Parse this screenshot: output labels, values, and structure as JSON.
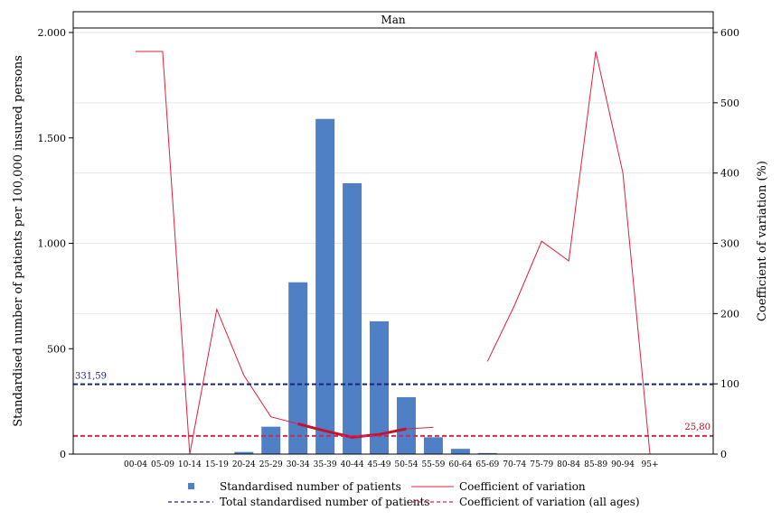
{
  "chart_data": {
    "type": "bar",
    "title": "Man",
    "ylabel": "Standardised number of patients per 100,000 insured persons",
    "y2label": "Coefficient of variation (%)",
    "categories": [
      "00-04",
      "05-09",
      "10-14",
      "15-19",
      "20-24",
      "25-29",
      "30-34",
      "35-39",
      "40-44",
      "45-49",
      "50-54",
      "55-59",
      "60-64",
      "65-69",
      "70-74",
      "75-79",
      "80-84",
      "85-89",
      "90-94",
      "95+"
    ],
    "ylim": [
      0,
      2000
    ],
    "yticks": [
      0,
      500,
      1000,
      1500,
      2000
    ],
    "ytick_labels": [
      "0",
      "500",
      "1.000",
      "1.500",
      "2.000"
    ],
    "y2lim": [
      0,
      600
    ],
    "y2ticks": [
      0,
      100,
      200,
      300,
      400,
      500,
      600
    ],
    "y2tick_labels": [
      "0",
      "100",
      "200",
      "300",
      "400",
      "500",
      "600"
    ],
    "grid": true,
    "legend_position": "bottom",
    "series": [
      {
        "name": "Standardised number of patients",
        "kind": "bar",
        "axis": "left",
        "color": "#4f7fc4",
        "values": [
          0,
          0,
          0,
          0,
          10,
          130,
          815,
          1590,
          1285,
          630,
          270,
          80,
          25,
          5,
          0,
          0,
          0,
          0,
          0,
          0
        ]
      },
      {
        "name": "Coefficient of variation",
        "kind": "line",
        "axis": "right",
        "color": "#e0203c",
        "values": [
          573,
          573,
          0,
          206,
          112,
          53,
          43,
          33,
          24,
          28,
          36,
          38,
          null,
          132,
          212,
          303,
          275,
          573,
          400,
          0
        ],
        "bold_range": [
          6,
          10
        ]
      },
      {
        "name": "Total standardised number of patients",
        "kind": "hline",
        "axis": "left",
        "color": "#1a237e",
        "value": 331.59,
        "label": "331,59"
      },
      {
        "name": "Coefficient of variation (all ages)",
        "kind": "hline",
        "axis": "right",
        "color": "#e0204c",
        "value": 25.8,
        "label": "25,80"
      }
    ]
  }
}
